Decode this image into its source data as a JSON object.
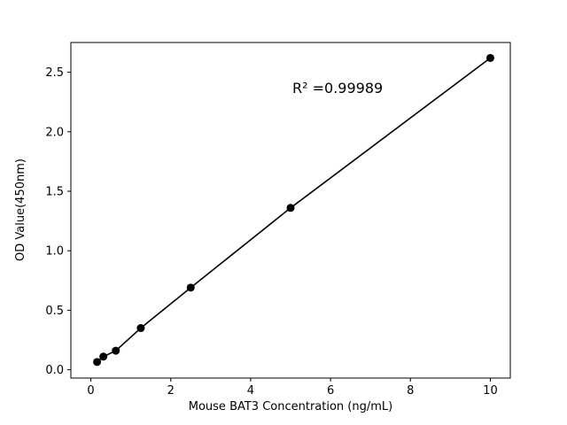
{
  "chart_data": {
    "type": "scatter",
    "title": "",
    "xlabel": "Mouse BAT3 Concentration (ng/mL)",
    "ylabel": "OD Value(450nm)",
    "annotation": "R² =0.99989",
    "x": [
      0.156,
      0.3125,
      0.625,
      1.25,
      2.5,
      5,
      10
    ],
    "y": [
      0.065,
      0.11,
      0.16,
      0.35,
      0.69,
      1.36,
      2.62
    ],
    "xticks": [
      0,
      2,
      4,
      6,
      8,
      10
    ],
    "yticks": [
      0.0,
      0.5,
      1.0,
      1.5,
      2.0,
      2.5
    ],
    "xlim": [
      -0.5,
      10.5
    ],
    "ylim": [
      -0.07,
      2.75
    ],
    "line": true,
    "legend": "none",
    "grid": false,
    "marker_color": "#000000",
    "line_color": "#000000",
    "axis_color": "#000000",
    "background": "#ffffff"
  }
}
